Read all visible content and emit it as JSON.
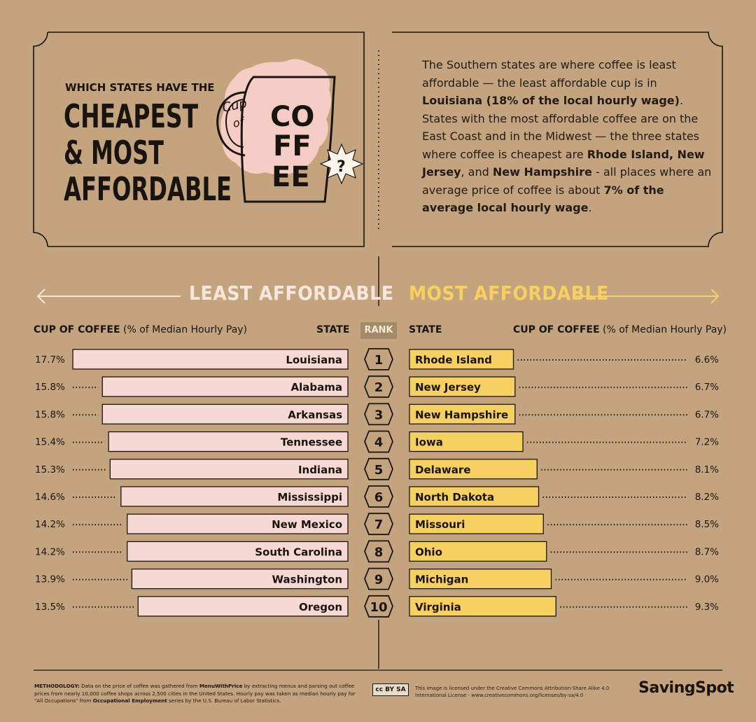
{
  "header": {
    "kicker": "WHICH STATES HAVE THE",
    "line1": "CHEAPEST",
    "line2": "& MOST",
    "line3": "AFFORDABLE",
    "cup_word": "Cup",
    "of_word": "of",
    "coffee_letters": [
      "CO",
      "FF",
      "EE"
    ],
    "question": "?"
  },
  "intro": {
    "t1": "The Southern states are where coffee is least affordable — the least affordable cup is in ",
    "b1": "Louisiana (18% of the local hourly wage)",
    "t2": ". States with the most affordable coffee are on the East Coast and in the Midwest — the three states where coffee is cheapest are ",
    "b2": "Rhode Island, New",
    "t3": " ",
    "b3": "Jersey",
    "t4": ", and ",
    "b4": "New Hampshire",
    "t5": " - all places where an average price of coffee is about ",
    "b5": "7% of the average local hourly wage",
    "t6": "."
  },
  "sections": {
    "least": "LEAST AFFORDABLE",
    "most": "MOST AFFORDABLE"
  },
  "columns": {
    "cup_bold": "CUP OF COFFEE",
    "cup_light": " (% of Median Hourly Pay)",
    "state": "STATE",
    "rank": "RANK"
  },
  "colors": {
    "background": "#c4a47f",
    "least_bar": "#f7d9d4",
    "most_bar": "#f6d061",
    "least_title": "#f6e6dc",
    "most_title": "#f6d061"
  },
  "chart_data": [
    {
      "type": "bar",
      "title": "LEAST AFFORDABLE",
      "xlabel": "CUP OF COFFEE (% of Median Hourly Pay)",
      "categories": [
        "Louisiana",
        "Alabama",
        "Arkansas",
        "Tennessee",
        "Indiana",
        "Mississippi",
        "New Mexico",
        "South Carolina",
        "Washington",
        "Oregon"
      ],
      "values": [
        17.7,
        15.8,
        15.8,
        15.4,
        15.3,
        14.6,
        14.2,
        14.2,
        13.9,
        13.5
      ],
      "labels": [
        "17.7%",
        "15.8%",
        "15.8%",
        "15.4%",
        "15.3%",
        "14.6%",
        "14.2%",
        "14.2%",
        "13.9%",
        "13.5%"
      ],
      "ranks": [
        "1",
        "2",
        "3",
        "4",
        "5",
        "6",
        "7",
        "8",
        "9",
        "10"
      ]
    },
    {
      "type": "bar",
      "title": "MOST AFFORDABLE",
      "xlabel": "CUP OF COFFEE (% of Median Hourly Pay)",
      "categories": [
        "Rhode Island",
        "New Jersey",
        "New Hampshire",
        "Iowa",
        "Delaware",
        "North Dakota",
        "Missouri",
        "Ohio",
        "Michigan",
        "Virginia"
      ],
      "values": [
        6.6,
        6.7,
        6.7,
        7.2,
        8.1,
        8.2,
        8.5,
        8.7,
        9.0,
        9.3
      ],
      "labels": [
        "6.6%",
        "6.7%",
        "6.7%",
        "7.2%",
        "8.1%",
        "8.2%",
        "8.5%",
        "8.7%",
        "9.0%",
        "9.3%"
      ]
    }
  ],
  "footer": {
    "method_label": "METHODOLOGY:",
    "method_t1": " Data on the price of coffee was gathered from ",
    "method_b1": "MenuWithPrice",
    "method_t2": " by extracting menus and parsing out coffee prices from nearly 10,000 coffee shops across 2,500 cities in the United States. Hourly pay was taken as median hourly pay for \"All Occupations\" from ",
    "method_b2": "Occupational Employment",
    "method_t3": " series by the U.S. Bureau of Labor Statistics.",
    "license": "This image is licensed under the Creative Commons Attribution-Share Alike 4.0 International License - www.creativecommons.org/licenses/by-sa/4.0",
    "cc_badge": "cc BY SA",
    "brand": "SavingSpot"
  }
}
